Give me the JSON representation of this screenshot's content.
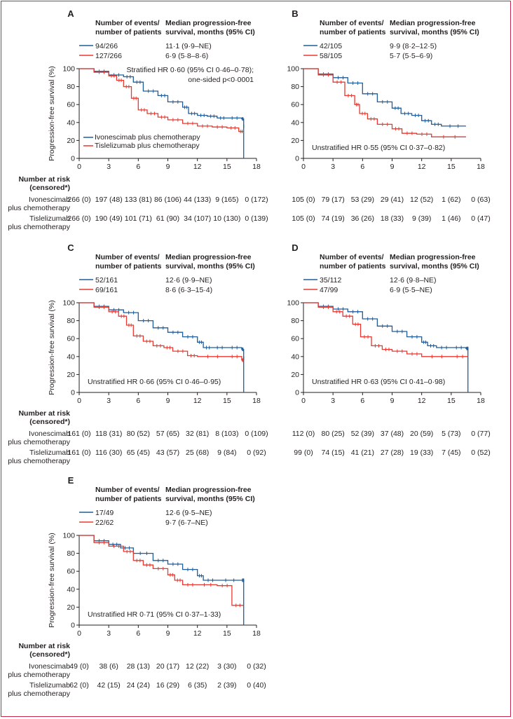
{
  "colors": {
    "ivo": "#1f5c9a",
    "tis": "#e8382f",
    "axis": "#231f20"
  },
  "labels": {
    "events_header": [
      "Number of events/",
      "number of patients"
    ],
    "median_header": [
      "Median progression-free",
      "survival, months (95% CI)"
    ],
    "risk_header": [
      "Number at risk",
      "(censored*)"
    ],
    "ivo_arm": [
      "Ivonescimab",
      "plus chemotherapy"
    ],
    "tis_arm": [
      "Tislelizumab",
      "plus chemotherapy"
    ],
    "ylabel": "Progression-free survival (%)"
  },
  "chart_data": [
    {
      "type": "line",
      "panel": "A",
      "xlim": [
        0,
        18
      ],
      "ylim": [
        0,
        100
      ],
      "xticks": [
        0,
        3,
        6,
        9,
        12,
        15,
        18
      ],
      "yticks": [
        0,
        20,
        40,
        60,
        80,
        100
      ],
      "ylabel": "Progression-free survival (%)",
      "legend": {
        "entries": [
          "Ivonescimab plus chemotherapy",
          "Tislelizumab plus chemotherapy"
        ]
      },
      "annotation": [
        "Stratified HR 0·60 (95% CI 0·46–0·78);",
        "one-sided p<0·0001"
      ],
      "table_rows": [
        {
          "events": "94/266",
          "median": "11·1 (9·9–NE)"
        },
        {
          "events": "127/266",
          "median": "6·9 (5·8–8·6)"
        }
      ],
      "series": [
        {
          "name": "Ivonescimab plus chemotherapy",
          "x": [
            0,
            1.5,
            3,
            4.5,
            5.5,
            6.5,
            8,
            9,
            10.5,
            11.1,
            12,
            13,
            14,
            15,
            16.5,
            16.7,
            16.7
          ],
          "y": [
            100,
            97,
            93,
            91,
            85,
            75,
            70,
            63,
            57,
            50,
            48,
            47,
            45,
            45,
            44,
            36,
            0
          ]
        },
        {
          "name": "Tislelizumab plus chemotherapy",
          "x": [
            0,
            1.5,
            3,
            3.8,
            4.5,
            5.3,
            6,
            6.9,
            8,
            9,
            10.5,
            12,
            13.5,
            15,
            16.2,
            16.7
          ],
          "y": [
            100,
            96,
            92,
            87,
            80,
            67,
            54,
            50,
            46,
            43,
            39,
            36,
            35,
            34,
            30,
            30
          ]
        }
      ],
      "risk": {
        "ivo": [
          "266 (0)",
          "197 (48)",
          "133 (81)",
          "86 (106)",
          "44 (133)",
          "9 (165)",
          "0 (172)"
        ],
        "tis": [
          "266 (0)",
          "190 (49)",
          "101 (71)",
          "61 (90)",
          "34 (107)",
          "10 (130)",
          "0 (139)"
        ]
      }
    },
    {
      "type": "line",
      "panel": "B",
      "xlim": [
        0,
        18
      ],
      "ylim": [
        0,
        100
      ],
      "xticks": [
        0,
        3,
        6,
        9,
        12,
        15,
        18
      ],
      "yticks": [
        0,
        20,
        40,
        60,
        80,
        100
      ],
      "annotation": [
        "Unstratified HR 0·55 (95% CI 0·37–0·82)"
      ],
      "table_rows": [
        {
          "events": "42/105",
          "median": "9·9 (8·2–12·5)"
        },
        {
          "events": "58/105",
          "median": "5·7 (5·5–6·9)"
        }
      ],
      "series": [
        {
          "name": "Ivonescimab plus chemotherapy",
          "x": [
            0,
            1.5,
            3,
            4.5,
            6,
            7.5,
            9,
            9.9,
            11,
            12,
            13,
            14,
            16.5
          ],
          "y": [
            100,
            94,
            90,
            84,
            72,
            63,
            56,
            50,
            48,
            42,
            38,
            36,
            36
          ]
        },
        {
          "name": "Tislelizumab plus chemotherapy",
          "x": [
            0,
            1.5,
            3,
            4.2,
            5.2,
            5.7,
            6.5,
            7.5,
            9,
            10,
            11.5,
            13,
            16.5
          ],
          "y": [
            100,
            93,
            85,
            70,
            60,
            50,
            44,
            38,
            33,
            28,
            27,
            24,
            24
          ]
        }
      ],
      "risk": {
        "ivo": [
          "105 (0)",
          "79 (17)",
          "53 (29)",
          "29 (41)",
          "12 (52)",
          "1 (62)",
          "0 (63)"
        ],
        "tis": [
          "105 (0)",
          "74 (19)",
          "36 (26)",
          "18 (33)",
          "9 (39)",
          "1 (46)",
          "0 (47)"
        ]
      }
    },
    {
      "type": "line",
      "panel": "C",
      "xlim": [
        0,
        18
      ],
      "ylim": [
        0,
        100
      ],
      "xticks": [
        0,
        3,
        6,
        9,
        12,
        15,
        18
      ],
      "yticks": [
        0,
        20,
        40,
        60,
        80,
        100
      ],
      "annotation": [
        "Unstratified HR 0·66 (95% CI 0·46–0·95)"
      ],
      "table_rows": [
        {
          "events": "52/161",
          "median": "12·6 (9·9–NE)"
        },
        {
          "events": "69/161",
          "median": "8·6 (6·3–15·4)"
        }
      ],
      "series": [
        {
          "name": "Ivonescimab plus chemotherapy",
          "x": [
            0,
            1.5,
            3,
            4.5,
            6,
            7.5,
            9,
            10.5,
            12,
            12.6,
            13.5,
            15,
            16.5,
            16.7,
            16.7
          ],
          "y": [
            100,
            96,
            92,
            89,
            80,
            72,
            67,
            62,
            56,
            50,
            50,
            50,
            48,
            38,
            0
          ]
        },
        {
          "name": "Tislelizumab plus chemotherapy",
          "x": [
            0,
            1.5,
            3,
            4,
            4.8,
            5.5,
            6.5,
            7.5,
            8.6,
            9.5,
            11,
            12,
            15,
            16.5,
            16.7
          ],
          "y": [
            100,
            95,
            90,
            85,
            75,
            63,
            57,
            52,
            50,
            46,
            41,
            40,
            40,
            36,
            36
          ]
        }
      ],
      "risk": {
        "ivo": [
          "161 (0)",
          "118 (31)",
          "80 (52)",
          "57 (65)",
          "32 (81)",
          "8 (103)",
          "0 (109)"
        ],
        "tis": [
          "161 (0)",
          "116 (30)",
          "65 (45)",
          "43 (57)",
          "25 (68)",
          "9 (84)",
          "0 (92)"
        ]
      }
    },
    {
      "type": "line",
      "panel": "D",
      "xlim": [
        0,
        18
      ],
      "ylim": [
        0,
        100
      ],
      "xticks": [
        0,
        3,
        6,
        9,
        12,
        15,
        18
      ],
      "yticks": [
        0,
        20,
        40,
        60,
        80,
        100
      ],
      "annotation": [
        "Unstratified HR 0·63 (95% CI 0·41–0·98)"
      ],
      "table_rows": [
        {
          "events": "35/112",
          "median": "12·6 (9·8–NE)"
        },
        {
          "events": "47/99",
          "median": "6·9 (5·5–NE)"
        }
      ],
      "series": [
        {
          "name": "Ivonescimab plus chemotherapy",
          "x": [
            0,
            1.5,
            3,
            4.5,
            6,
            7.5,
            9,
            10.5,
            12,
            12.6,
            13.5,
            15,
            16.5,
            16.7,
            16.7
          ],
          "y": [
            100,
            96,
            93,
            90,
            82,
            74,
            68,
            62,
            56,
            52,
            50,
            50,
            49,
            49,
            0
          ]
        },
        {
          "name": "Tislelizumab plus chemotherapy",
          "x": [
            0,
            1.5,
            3,
            4,
            5,
            5.8,
            6.9,
            8,
            9,
            10.5,
            12,
            15,
            16.7
          ],
          "y": [
            100,
            95,
            90,
            85,
            76,
            62,
            52,
            48,
            46,
            43,
            40,
            40,
            40
          ]
        }
      ],
      "risk": {
        "ivo": [
          "112 (0)",
          "80 (25)",
          "52 (39)",
          "37 (48)",
          "20 (59)",
          "5 (73)",
          "0 (77)"
        ],
        "tis": [
          "99 (0)",
          "74 (15)",
          "41 (21)",
          "27 (28)",
          "19 (33)",
          "7 (45)",
          "0 (52)"
        ]
      }
    },
    {
      "type": "line",
      "panel": "E",
      "xlim": [
        0,
        18
      ],
      "ylim": [
        0,
        100
      ],
      "xticks": [
        0,
        3,
        6,
        9,
        12,
        15,
        18
      ],
      "yticks": [
        0,
        20,
        40,
        60,
        80,
        100
      ],
      "annotation": [
        "Unstratified HR 0·71 (95% CI 0·37–1·33)"
      ],
      "table_rows": [
        {
          "events": "17/49",
          "median": "12·6 (9·5–NE)"
        },
        {
          "events": "22/62",
          "median": "9·7 (6·7–NE)"
        }
      ],
      "series": [
        {
          "name": "Ivonescimab plus chemotherapy",
          "x": [
            0,
            1.5,
            3,
            4.2,
            5.5,
            7.5,
            9,
            10.5,
            12,
            12.6,
            14,
            16.5,
            16.7,
            16.7
          ],
          "y": [
            100,
            94,
            90,
            86,
            80,
            72,
            68,
            62,
            55,
            50,
            50,
            50,
            50,
            0
          ]
        },
        {
          "name": "Tislelizumab plus chemotherapy",
          "x": [
            0,
            1.5,
            3,
            4.5,
            5.5,
            6.5,
            7.5,
            9,
            9.7,
            10.5,
            12,
            14,
            15.5,
            16.7
          ],
          "y": [
            100,
            92,
            88,
            82,
            72,
            67,
            63,
            56,
            50,
            45,
            45,
            44,
            22,
            22
          ]
        }
      ],
      "risk": {
        "ivo": [
          "49 (0)",
          "38 (6)",
          "28 (13)",
          "20 (17)",
          "12 (22)",
          "3 (30)",
          "0 (32)"
        ],
        "tis": [
          "62 (0)",
          "42 (15)",
          "24 (24)",
          "16 (29)",
          "6 (35)",
          "2 (39)",
          "0 (40)"
        ]
      }
    }
  ]
}
